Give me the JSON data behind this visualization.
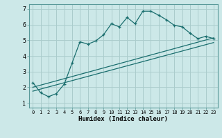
{
  "xlabel": "Humidex (Indice chaleur)",
  "bg_color": "#cce8e8",
  "grid_color": "#aacccc",
  "line_color": "#1a6e6e",
  "xlim": [
    -0.5,
    23.5
  ],
  "ylim": [
    0.7,
    7.3
  ],
  "yticks": [
    1,
    2,
    3,
    4,
    5,
    6,
    7
  ],
  "xticks": [
    0,
    1,
    2,
    3,
    4,
    5,
    6,
    7,
    8,
    9,
    10,
    11,
    12,
    13,
    14,
    15,
    16,
    17,
    18,
    19,
    20,
    21,
    22,
    23
  ],
  "series1_x": [
    0,
    1,
    2,
    3,
    4,
    5,
    6,
    7,
    8,
    9,
    10,
    11,
    12,
    13,
    14,
    15,
    16,
    17,
    18,
    19,
    20,
    21,
    22,
    23
  ],
  "series1_y": [
    2.3,
    1.65,
    1.4,
    1.6,
    2.2,
    3.55,
    4.9,
    4.75,
    4.95,
    5.35,
    6.05,
    5.85,
    6.45,
    6.05,
    6.85,
    6.85,
    6.6,
    6.3,
    5.95,
    5.85,
    5.45,
    5.1,
    5.25,
    5.1
  ],
  "series2_x": [
    0,
    23
  ],
  "series2_y": [
    2.0,
    5.15
  ],
  "series3_x": [
    0,
    23
  ],
  "series3_y": [
    1.75,
    4.85
  ]
}
